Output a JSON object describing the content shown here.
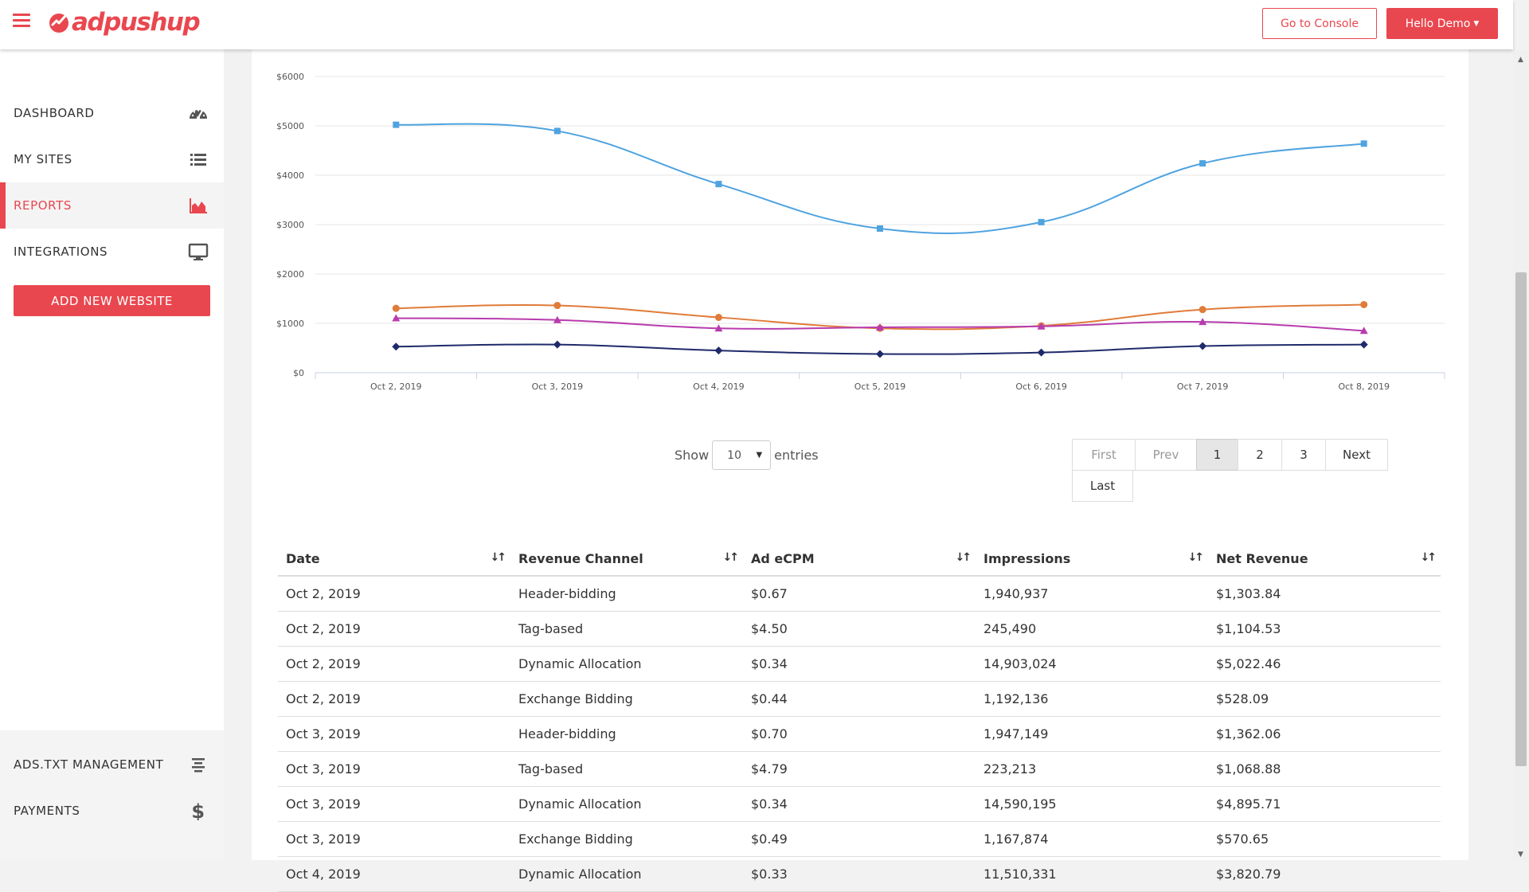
{
  "header": {
    "brand": "adpushup",
    "console_button": "Go to Console",
    "user_button": "Hello Demo",
    "accent_color": "#e9474f"
  },
  "sidebar": {
    "items": [
      {
        "label": "DASHBOARD",
        "icon": "dashboard-gauge-icon"
      },
      {
        "label": "MY SITES",
        "icon": "list-icon"
      },
      {
        "label": "REPORTS",
        "icon": "area-chart-icon",
        "active": true
      },
      {
        "label": "INTEGRATIONS",
        "icon": "monitor-icon"
      }
    ],
    "add_button": "ADD NEW WEBSITE",
    "bottom_items": [
      {
        "label": "ADS.TXT MANAGEMENT",
        "icon": "align-center-icon"
      },
      {
        "label": "PAYMENTS",
        "icon": "dollar-icon"
      }
    ]
  },
  "chart_data": {
    "type": "line",
    "categories": [
      "Oct 2, 2019",
      "Oct 3, 2019",
      "Oct 4, 2019",
      "Oct 5, 2019",
      "Oct 6, 2019",
      "Oct 7, 2019",
      "Oct 8, 2019"
    ],
    "y_ticks": [
      "$0",
      "$1000",
      "$2000",
      "$3000",
      "$4000",
      "$5000",
      "$6000"
    ],
    "ylim": [
      0,
      6000
    ],
    "grid": true,
    "series": [
      {
        "color": "#4fa3e0",
        "marker": "square",
        "values": [
          5022,
          4896,
          3821,
          2920,
          3050,
          4240,
          4640
        ]
      },
      {
        "color": "#e07b39",
        "marker": "circle",
        "values": [
          1304,
          1362,
          1120,
          900,
          950,
          1280,
          1380
        ]
      },
      {
        "color": "#b83cae",
        "marker": "triangle",
        "values": [
          1105,
          1069,
          900,
          920,
          940,
          1030,
          850
        ]
      },
      {
        "color": "#1f2a6b",
        "marker": "diamond",
        "values": [
          528,
          571,
          450,
          380,
          410,
          540,
          570
        ]
      }
    ]
  },
  "table_controls": {
    "show_label": "Show",
    "entries_value": "10",
    "entries_label": "entries"
  },
  "pagination": {
    "first": "First",
    "prev": "Prev",
    "pages": [
      "1",
      "2",
      "3"
    ],
    "next": "Next",
    "last": "Last"
  },
  "table": {
    "columns": [
      "Date",
      "Revenue Channel",
      "Ad eCPM",
      "Impressions",
      "Net Revenue"
    ],
    "rows": [
      [
        "Oct 2, 2019",
        "Header-bidding",
        "$0.67",
        "1,940,937",
        "$1,303.84"
      ],
      [
        "Oct 2, 2019",
        "Tag-based",
        "$4.50",
        "245,490",
        "$1,104.53"
      ],
      [
        "Oct 2, 2019",
        "Dynamic Allocation",
        "$0.34",
        "14,903,024",
        "$5,022.46"
      ],
      [
        "Oct 2, 2019",
        "Exchange Bidding",
        "$0.44",
        "1,192,136",
        "$528.09"
      ],
      [
        "Oct 3, 2019",
        "Header-bidding",
        "$0.70",
        "1,947,149",
        "$1,362.06"
      ],
      [
        "Oct 3, 2019",
        "Tag-based",
        "$4.79",
        "223,213",
        "$1,068.88"
      ],
      [
        "Oct 3, 2019",
        "Dynamic Allocation",
        "$0.34",
        "14,590,195",
        "$4,895.71"
      ],
      [
        "Oct 3, 2019",
        "Exchange Bidding",
        "$0.49",
        "1,167,874",
        "$570.65"
      ],
      [
        "Oct 4, 2019",
        "Dynamic Allocation",
        "$0.33",
        "11,510,331",
        "$3,820.79"
      ]
    ]
  }
}
